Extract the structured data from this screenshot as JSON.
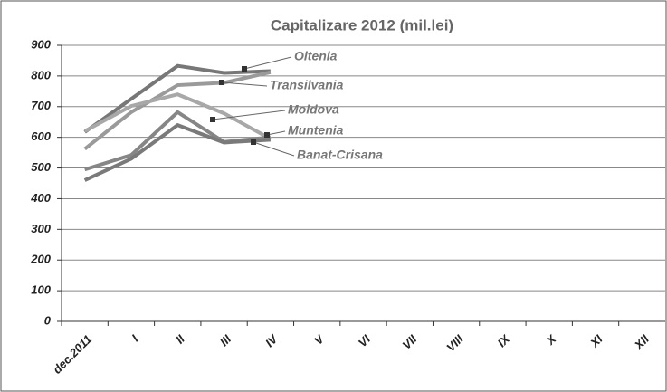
{
  "chart_data": {
    "type": "line",
    "title": "Capitalizare 2012 (mil.lei)",
    "categories": [
      "dec.2011",
      "I",
      "II",
      "III",
      "IV",
      "V",
      "VI",
      "VII",
      "VIII",
      "IX",
      "X",
      "XI",
      "XII"
    ],
    "series": [
      {
        "name": "Oltenia",
        "color": "#777777",
        "values": [
          617,
          725,
          833,
          810,
          816,
          null,
          null,
          null,
          null,
          null,
          null,
          null,
          null
        ]
      },
      {
        "name": "Transilvania",
        "color": "#9a9a9a",
        "values": [
          562,
          682,
          770,
          778,
          812,
          null,
          null,
          null,
          null,
          null,
          null,
          null,
          null
        ]
      },
      {
        "name": "Moldova",
        "color": "#a8a8a8",
        "values": [
          620,
          702,
          740,
          678,
          595,
          null,
          null,
          null,
          null,
          null,
          null,
          null,
          null
        ]
      },
      {
        "name": "Muntenia",
        "color": "#868686",
        "values": [
          495,
          542,
          682,
          585,
          600,
          null,
          null,
          null,
          null,
          null,
          null,
          null,
          null
        ]
      },
      {
        "name": "Banat-Crisana",
        "color": "#7a7a7a",
        "values": [
          460,
          530,
          640,
          583,
          592,
          null,
          null,
          null,
          null,
          null,
          null,
          null,
          null
        ]
      }
    ],
    "ylim": [
      0,
      900
    ],
    "yticks": [
      0,
      100,
      200,
      300,
      400,
      500,
      600,
      700,
      800,
      900
    ],
    "grid": true
  }
}
